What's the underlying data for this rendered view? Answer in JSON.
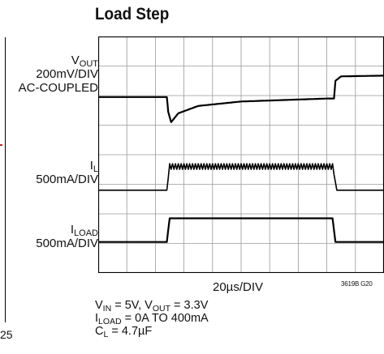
{
  "title": "Load Step",
  "channels": {
    "vout": {
      "name": "V",
      "sub": "OUT",
      "scale": "200mV/DIV",
      "note": "AC-COUPLED"
    },
    "il": {
      "name": "I",
      "sub": "L",
      "scale": "500mA/DIV"
    },
    "iload": {
      "name": "I",
      "sub": "LOAD",
      "scale": "500mA/DIV"
    }
  },
  "xaxis_label": "20µs/DIV",
  "figure_id": "3619B G20",
  "conditions": {
    "line1": {
      "a": "V",
      "a_sub": "IN",
      "b": " = 5V, V",
      "b_sub": "OUT",
      "c": " = 3.3V"
    },
    "line2": {
      "a": "I",
      "a_sub": "LOAD",
      "b": " = 0A TO 400mA"
    },
    "line3": {
      "a": "C",
      "a_sub": "L",
      "b": " = 4.7µF"
    }
  },
  "left_edge_tick": "25",
  "chart_data": {
    "type": "line",
    "title": "Load Step",
    "xlabel": "20µs/DIV",
    "grid": true,
    "xlim_div": [
      0,
      10
    ],
    "ylim_div": [
      0,
      8
    ],
    "series": [
      {
        "name": "VOUT",
        "unit": "mV",
        "scale_per_div": 200,
        "x_div": [
          0,
          2.4,
          2.45,
          2.55,
          2.8,
          3.5,
          5.0,
          8.0,
          8.25,
          8.3,
          8.5,
          10
        ],
        "y": [
          0,
          0,
          -100,
          -170,
          -110,
          -60,
          -30,
          -10,
          -10,
          110,
          140,
          145
        ]
      },
      {
        "name": "IL",
        "unit": "mA",
        "scale_per_div": 500,
        "x_div": [
          0,
          2.4,
          2.5,
          8.2,
          8.35,
          10
        ],
        "y": [
          0,
          0,
          400,
          400,
          0,
          0
        ]
      },
      {
        "name": "ILOAD",
        "unit": "mA",
        "scale_per_div": 500,
        "x_div": [
          0,
          2.4,
          2.5,
          8.2,
          8.3,
          10
        ],
        "y": [
          0,
          0,
          400,
          400,
          0,
          0
        ]
      }
    ]
  }
}
